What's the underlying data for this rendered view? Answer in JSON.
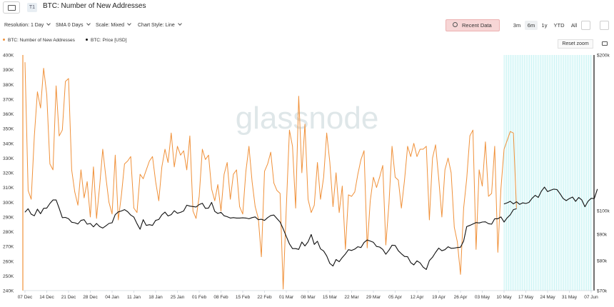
{
  "header": {
    "t1_badge": "T1",
    "title": "BTC: Number of New Addresses"
  },
  "toolbar": {
    "resolution": "Resolution: 1 Day",
    "sma": "SMA 0 Days",
    "scale": "Scale: Mixed",
    "chart_style": "Chart Style: Line",
    "recent_data": "Recent Data",
    "ranges": [
      "3m",
      "6m",
      "1y",
      "YTD",
      "All"
    ],
    "active_range": "6m",
    "reset_zoom": "Reset zoom"
  },
  "colors": {
    "series_addresses": "#f0913a",
    "series_price": "#111111",
    "forecast_band": "#b7eef0",
    "accent_recent": "#f7d6d6"
  },
  "chart_data": {
    "type": "line",
    "title": "BTC: Number of New Addresses",
    "x_ticks": [
      "07 Dec",
      "14 Dec",
      "21 Dec",
      "28 Dec",
      "04 Jan",
      "11 Jan",
      "18 Jan",
      "25 Jan",
      "01 Feb",
      "08 Feb",
      "15 Feb",
      "22 Feb",
      "01 Mar",
      "08 Mar",
      "15 Mar",
      "22 Mar",
      "29 Mar",
      "05 Apr",
      "12 Apr",
      "19 Apr",
      "26 Apr",
      "03 May",
      "10 May",
      "17 May",
      "24 May",
      "31 May",
      "07 Jun"
    ],
    "y_left_ticks": [
      "400K",
      "390K",
      "380K",
      "370K",
      "360K",
      "350K",
      "340K",
      "330K",
      "320K",
      "310K",
      "300K",
      "290K",
      "280K",
      "270K",
      "260K",
      "250K",
      "240K"
    ],
    "y_right_ticks": [
      "$200k",
      "$100k",
      "$90k",
      "$80k",
      "$70k"
    ],
    "ylim_left": [
      240000,
      400000
    ],
    "right_scale": "log",
    "ylim_right": [
      70000,
      200000
    ],
    "grid": false,
    "legend_position": "top-left",
    "watermark": "glassnode",
    "highlight_range": [
      "10 May",
      "07 Jun"
    ],
    "series": [
      {
        "name": "BTC: Number of New Addresses",
        "axis": "left",
        "start_date": "2024-12-07",
        "values": [
          395000,
          308000,
          302000,
          345000,
          375000,
          364000,
          391000,
          373000,
          326000,
          322000,
          379000,
          345000,
          349000,
          382000,
          384000,
          322000,
          307000,
          298000,
          322000,
          303000,
          314000,
          290000,
          324000,
          289000,
          311000,
          336000,
          317000,
          300000,
          292000,
          332000,
          288000,
          305000,
          326000,
          328000,
          331000,
          296000,
          293000,
          319000,
          316000,
          322000,
          328000,
          331000,
          314000,
          301000,
          324000,
          336000,
          327000,
          347000,
          324000,
          338000,
          332000,
          335000,
          322000,
          345000,
          294000,
          289000,
          304000,
          336000,
          329000,
          332000,
          309000,
          301000,
          312000,
          294000,
          319000,
          327000,
          302000,
          319000,
          322000,
          297000,
          292000,
          321000,
          338000,
          314000,
          297000,
          289000,
          263000,
          321000,
          326000,
          334000,
          313000,
          308000,
          306000,
          241000,
          296000,
          349000,
          338000,
          296000,
          372000,
          320000,
          353000,
          302000,
          293000,
          298000,
          327000,
          302000,
          317000,
          347000,
          327000,
          297000,
          320000,
          293000,
          311000,
          268000,
          305000,
          304000,
          307000,
          319000,
          329000,
          335000,
          269000,
          301000,
          317000,
          310000,
          317000,
          325000,
          271000,
          299000,
          338000,
          317000,
          315000,
          296000,
          315000,
          338000,
          331000,
          340000,
          331000,
          336000,
          336000,
          338000,
          288000,
          330000,
          339000,
          316000,
          290000,
          322000,
          330000,
          320000,
          283000,
          273000,
          251000,
          296000,
          316000,
          345000,
          349000,
          268000,
          322000,
          311000,
          341000,
          304000,
          306000,
          338000,
          266000,
          309000,
          336000,
          342000,
          348000,
          347000,
          296000
        ]
      },
      {
        "name": "BTC: Price [USD]",
        "axis": "right",
        "start_date": "2024-12-07",
        "values": [
          99300,
          100800,
          98400,
          97700,
          100600,
          98600,
          101000,
          101100,
          103200,
          104800,
          104800,
          101000,
          96900,
          97000,
          96400,
          94900,
          94700,
          94200,
          95700,
          96000,
          94100,
          94400,
          93000,
          94400,
          93100,
          92500,
          93400,
          94400,
          94700,
          98200,
          99400,
          99800,
          100400,
          99500,
          98000,
          97100,
          94300,
          92000,
          96000,
          93600,
          93900,
          93600,
          95700,
          96100,
          98100,
          99300,
          97600,
          98200,
          99900,
          98800,
          99200,
          99800,
          102400,
          102000,
          101800,
          101600,
          102700,
          103300,
          101000,
          101100,
          103700,
          99600,
          98700,
          99200,
          97700,
          97300,
          96700,
          96900,
          96700,
          96700,
          96800,
          96700,
          96400,
          96900,
          97200,
          96000,
          96200,
          95700,
          96900,
          97800,
          98000,
          96500,
          95000,
          92200,
          89100,
          86200,
          84400,
          84400,
          84100,
          86900,
          85400,
          87000,
          89900,
          86000,
          87200,
          84300,
          83500,
          81700,
          79000,
          78100,
          80400,
          79600,
          81100,
          82400,
          84000,
          83700,
          84200,
          85100,
          84800,
          86700,
          87700,
          87300,
          86800,
          85200,
          85000,
          84100,
          82300,
          83800,
          85700,
          85600,
          83600,
          82500,
          81500,
          81400,
          79300,
          78500,
          79900,
          79200,
          77700,
          76900,
          80000,
          81200,
          83000,
          84600,
          83600,
          84000,
          85100,
          84500,
          84600,
          84800,
          84900,
          87300,
          93100,
          93600,
          94200,
          94800,
          94600,
          95000,
          95100,
          94300,
          94100,
          96400,
          96400,
          97200,
          95000,
          96800,
          98100,
          100400,
          100800
        ]
      },
      {
        "name": "BTC: Price [USD] (recent)",
        "axis": "right",
        "start_date": "2025-05-10",
        "values": [
          103000,
          103500,
          104200,
          103000,
          104000,
          102800,
          103500,
          103200,
          103700,
          105600,
          107000,
          106000,
          109000,
          111000,
          108800,
          109500,
          110000,
          109800,
          107800,
          105500,
          104500,
          105500,
          106200,
          104200,
          106000,
          104800,
          101700,
          104200,
          105600,
          105500,
          110000
        ]
      }
    ]
  }
}
